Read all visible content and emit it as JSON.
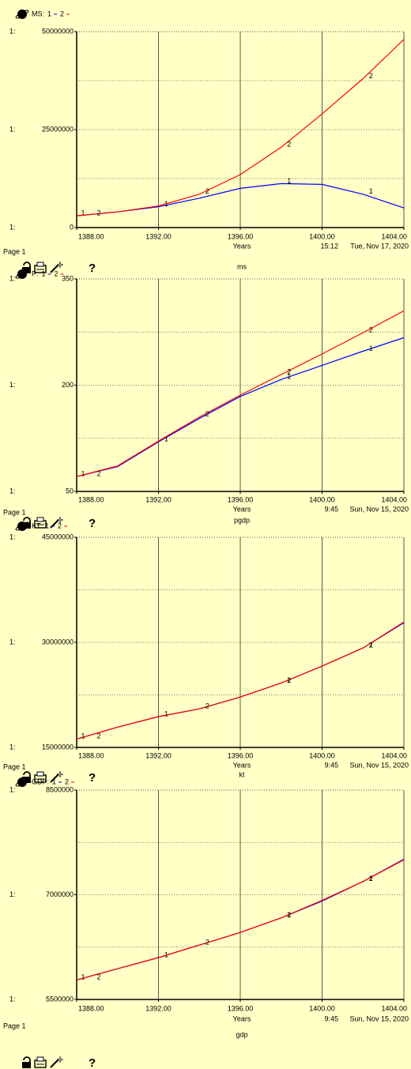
{
  "chart_data": [
    {
      "type": "line",
      "title": "MS:",
      "axis_prefix": "1:",
      "x_label": "Years",
      "x": [
        1388,
        1390,
        1392,
        1394,
        1396,
        1398,
        1400,
        1402,
        1404
      ],
      "xlim": [
        1388,
        1404
      ],
      "xticks": [
        {
          "value": 1388,
          "label": "1388.00"
        },
        {
          "value": 1392,
          "label": "1392.00"
        },
        {
          "value": 1396,
          "label": "1396.00"
        },
        {
          "value": 1400,
          "label": "1400.00"
        },
        {
          "value": 1404,
          "label": "1404.00"
        }
      ],
      "ylim": [
        0,
        50000000
      ],
      "yticks": [
        0,
        25000000,
        50000000
      ],
      "series": [
        {
          "name": "1",
          "color": "#0000ff",
          "values": [
            3000000,
            4000000,
            5300000,
            7500000,
            10000000,
            11200000,
            11000000,
            8500000,
            5000000
          ]
        },
        {
          "name": "2",
          "color": "#ff0000",
          "values": [
            3000000,
            4000000,
            5500000,
            8500000,
            13500000,
            20500000,
            29000000,
            38000000,
            48000000
          ]
        }
      ],
      "page": "Page 1",
      "time": "15:12",
      "date": "Tue, Nov 17, 2020",
      "variable": "ms",
      "help": "?"
    },
    {
      "type": "line",
      "title": "P:",
      "axis_prefix": "1:",
      "x_label": "Years",
      "x": [
        1388,
        1390,
        1392,
        1394,
        1396,
        1398,
        1400,
        1402,
        1404
      ],
      "xlim": [
        1388,
        1404
      ],
      "xticks": [
        {
          "value": 1388,
          "label": "1388.00"
        },
        {
          "value": 1392,
          "label": "1392.00"
        },
        {
          "value": 1396,
          "label": "1396.00"
        },
        {
          "value": 1400,
          "label": "1400.00"
        },
        {
          "value": 1404,
          "label": "1404.00"
        }
      ],
      "ylim": [
        50,
        350
      ],
      "yticks": [
        50,
        200,
        350
      ],
      "series": [
        {
          "name": "1",
          "color": "#0000ff",
          "values": [
            71,
            85,
            120,
            153,
            184,
            208,
            228,
            248,
            267
          ]
        },
        {
          "name": "2",
          "color": "#ff0000",
          "values": [
            71,
            86,
            121,
            155,
            186,
            215,
            244,
            274,
            305
          ]
        }
      ],
      "page": "Page 1",
      "time": "9:45",
      "date": "Sun, Nov 15, 2020",
      "variable": "pgdp",
      "help": "?"
    },
    {
      "type": "line",
      "title": "KT:",
      "axis_prefix": "1:",
      "x_label": "Years",
      "x": [
        1388,
        1390,
        1392,
        1394,
        1396,
        1398,
        1400,
        1402,
        1404
      ],
      "xlim": [
        1388,
        1404
      ],
      "xticks": [
        {
          "value": 1388,
          "label": "1388.00"
        },
        {
          "value": 1392,
          "label": "1392.00"
        },
        {
          "value": 1396,
          "label": "1396.00"
        },
        {
          "value": 1400,
          "label": "1400.00"
        },
        {
          "value": 1404,
          "label": "1404.00"
        }
      ],
      "ylim": [
        15000000,
        45000000
      ],
      "yticks": [
        15000000,
        30000000,
        45000000
      ],
      "series": [
        {
          "name": "1",
          "color": "#0000ff",
          "values": [
            16200000,
            17900000,
            19400000,
            20500000,
            22200000,
            24200000,
            26600000,
            29200000,
            32800000
          ]
        },
        {
          "name": "2",
          "color": "#ff0000",
          "values": [
            16200000,
            17900000,
            19400000,
            20500000,
            22200000,
            24200000,
            26600000,
            29200000,
            32900000
          ]
        }
      ],
      "page": "Page 1",
      "time": "9:45",
      "date": "Sun, Nov 15, 2020",
      "variable": "kt",
      "help": "?"
    },
    {
      "type": "line",
      "title": "GDP:",
      "axis_prefix": "1:",
      "x_label": "Years",
      "x": [
        1388,
        1390,
        1392,
        1394,
        1396,
        1398,
        1400,
        1402,
        1404
      ],
      "xlim": [
        1388,
        1404
      ],
      "xticks": [
        {
          "value": 1388,
          "label": "1388.00"
        },
        {
          "value": 1392,
          "label": "1392.00"
        },
        {
          "value": 1396,
          "label": "1396.00"
        },
        {
          "value": 1400,
          "label": "1400.00"
        },
        {
          "value": 1404,
          "label": "1404.00"
        }
      ],
      "ylim": [
        5500000,
        8500000
      ],
      "yticks": [
        5500000,
        7000000,
        8500000
      ],
      "series": [
        {
          "name": "1",
          "color": "#0000ff",
          "values": [
            5780000,
            5940000,
            6100000,
            6280000,
            6460000,
            6670000,
            6910000,
            7190000,
            7510000
          ]
        },
        {
          "name": "2",
          "color": "#ff0000",
          "values": [
            5780000,
            5940000,
            6100000,
            6280000,
            6460000,
            6670000,
            6920000,
            7190000,
            7500000
          ]
        }
      ],
      "page": "Page 1",
      "time": "9:45",
      "date": "Sun, Nov 15, 2020",
      "variable": "gdp",
      "help": "?"
    }
  ]
}
